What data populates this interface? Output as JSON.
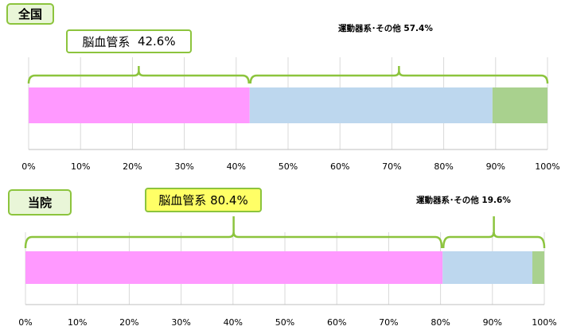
{
  "chart_data": [
    {
      "type": "bar",
      "orientation": "horizontal",
      "stacked": true,
      "title": "全国",
      "axis_ticks": [
        "0%",
        "10%",
        "20%",
        "30%",
        "40%",
        "50%",
        "60%",
        "70%",
        "80%",
        "90%",
        "100%"
      ],
      "xlim": [
        0,
        100
      ],
      "grid": true,
      "segments": [
        {
          "value": 42.6,
          "color": "#ff99ff"
        },
        {
          "value": 46.8,
          "color": "#bdd7ee"
        },
        {
          "value": 10.6,
          "color": "#a9d18e"
        }
      ],
      "annotations": [
        {
          "label": "脳血管系",
          "value_label": "42.6%",
          "span": [
            0,
            42.6
          ],
          "highlight": false
        },
        {
          "label": "運動器系･その他",
          "value_label": "57.4%",
          "span": [
            42.6,
            100
          ]
        }
      ]
    },
    {
      "type": "bar",
      "orientation": "horizontal",
      "stacked": true,
      "title": "当院",
      "axis_ticks": [
        "0%",
        "10%",
        "20%",
        "30%",
        "40%",
        "50%",
        "60%",
        "70%",
        "80%",
        "90%",
        "100%"
      ],
      "xlim": [
        0,
        100
      ],
      "grid": true,
      "segments": [
        {
          "value": 80.4,
          "color": "#ff99ff"
        },
        {
          "value": 17.3,
          "color": "#bdd7ee"
        },
        {
          "value": 2.3,
          "color": "#a9d18e"
        }
      ],
      "annotations": [
        {
          "label": "脳血管系",
          "value_label": "80.4%",
          "span": [
            0,
            80.4
          ],
          "highlight": true
        },
        {
          "label": "運動器系･その他",
          "value_label": "19.6%",
          "span": [
            80.4,
            100
          ]
        }
      ]
    }
  ],
  "colors": {
    "bracket": "#8cc43d",
    "tag_fill": "#e9f6d8",
    "highlight": "#ffff66",
    "grid": "#d9d9d9"
  }
}
